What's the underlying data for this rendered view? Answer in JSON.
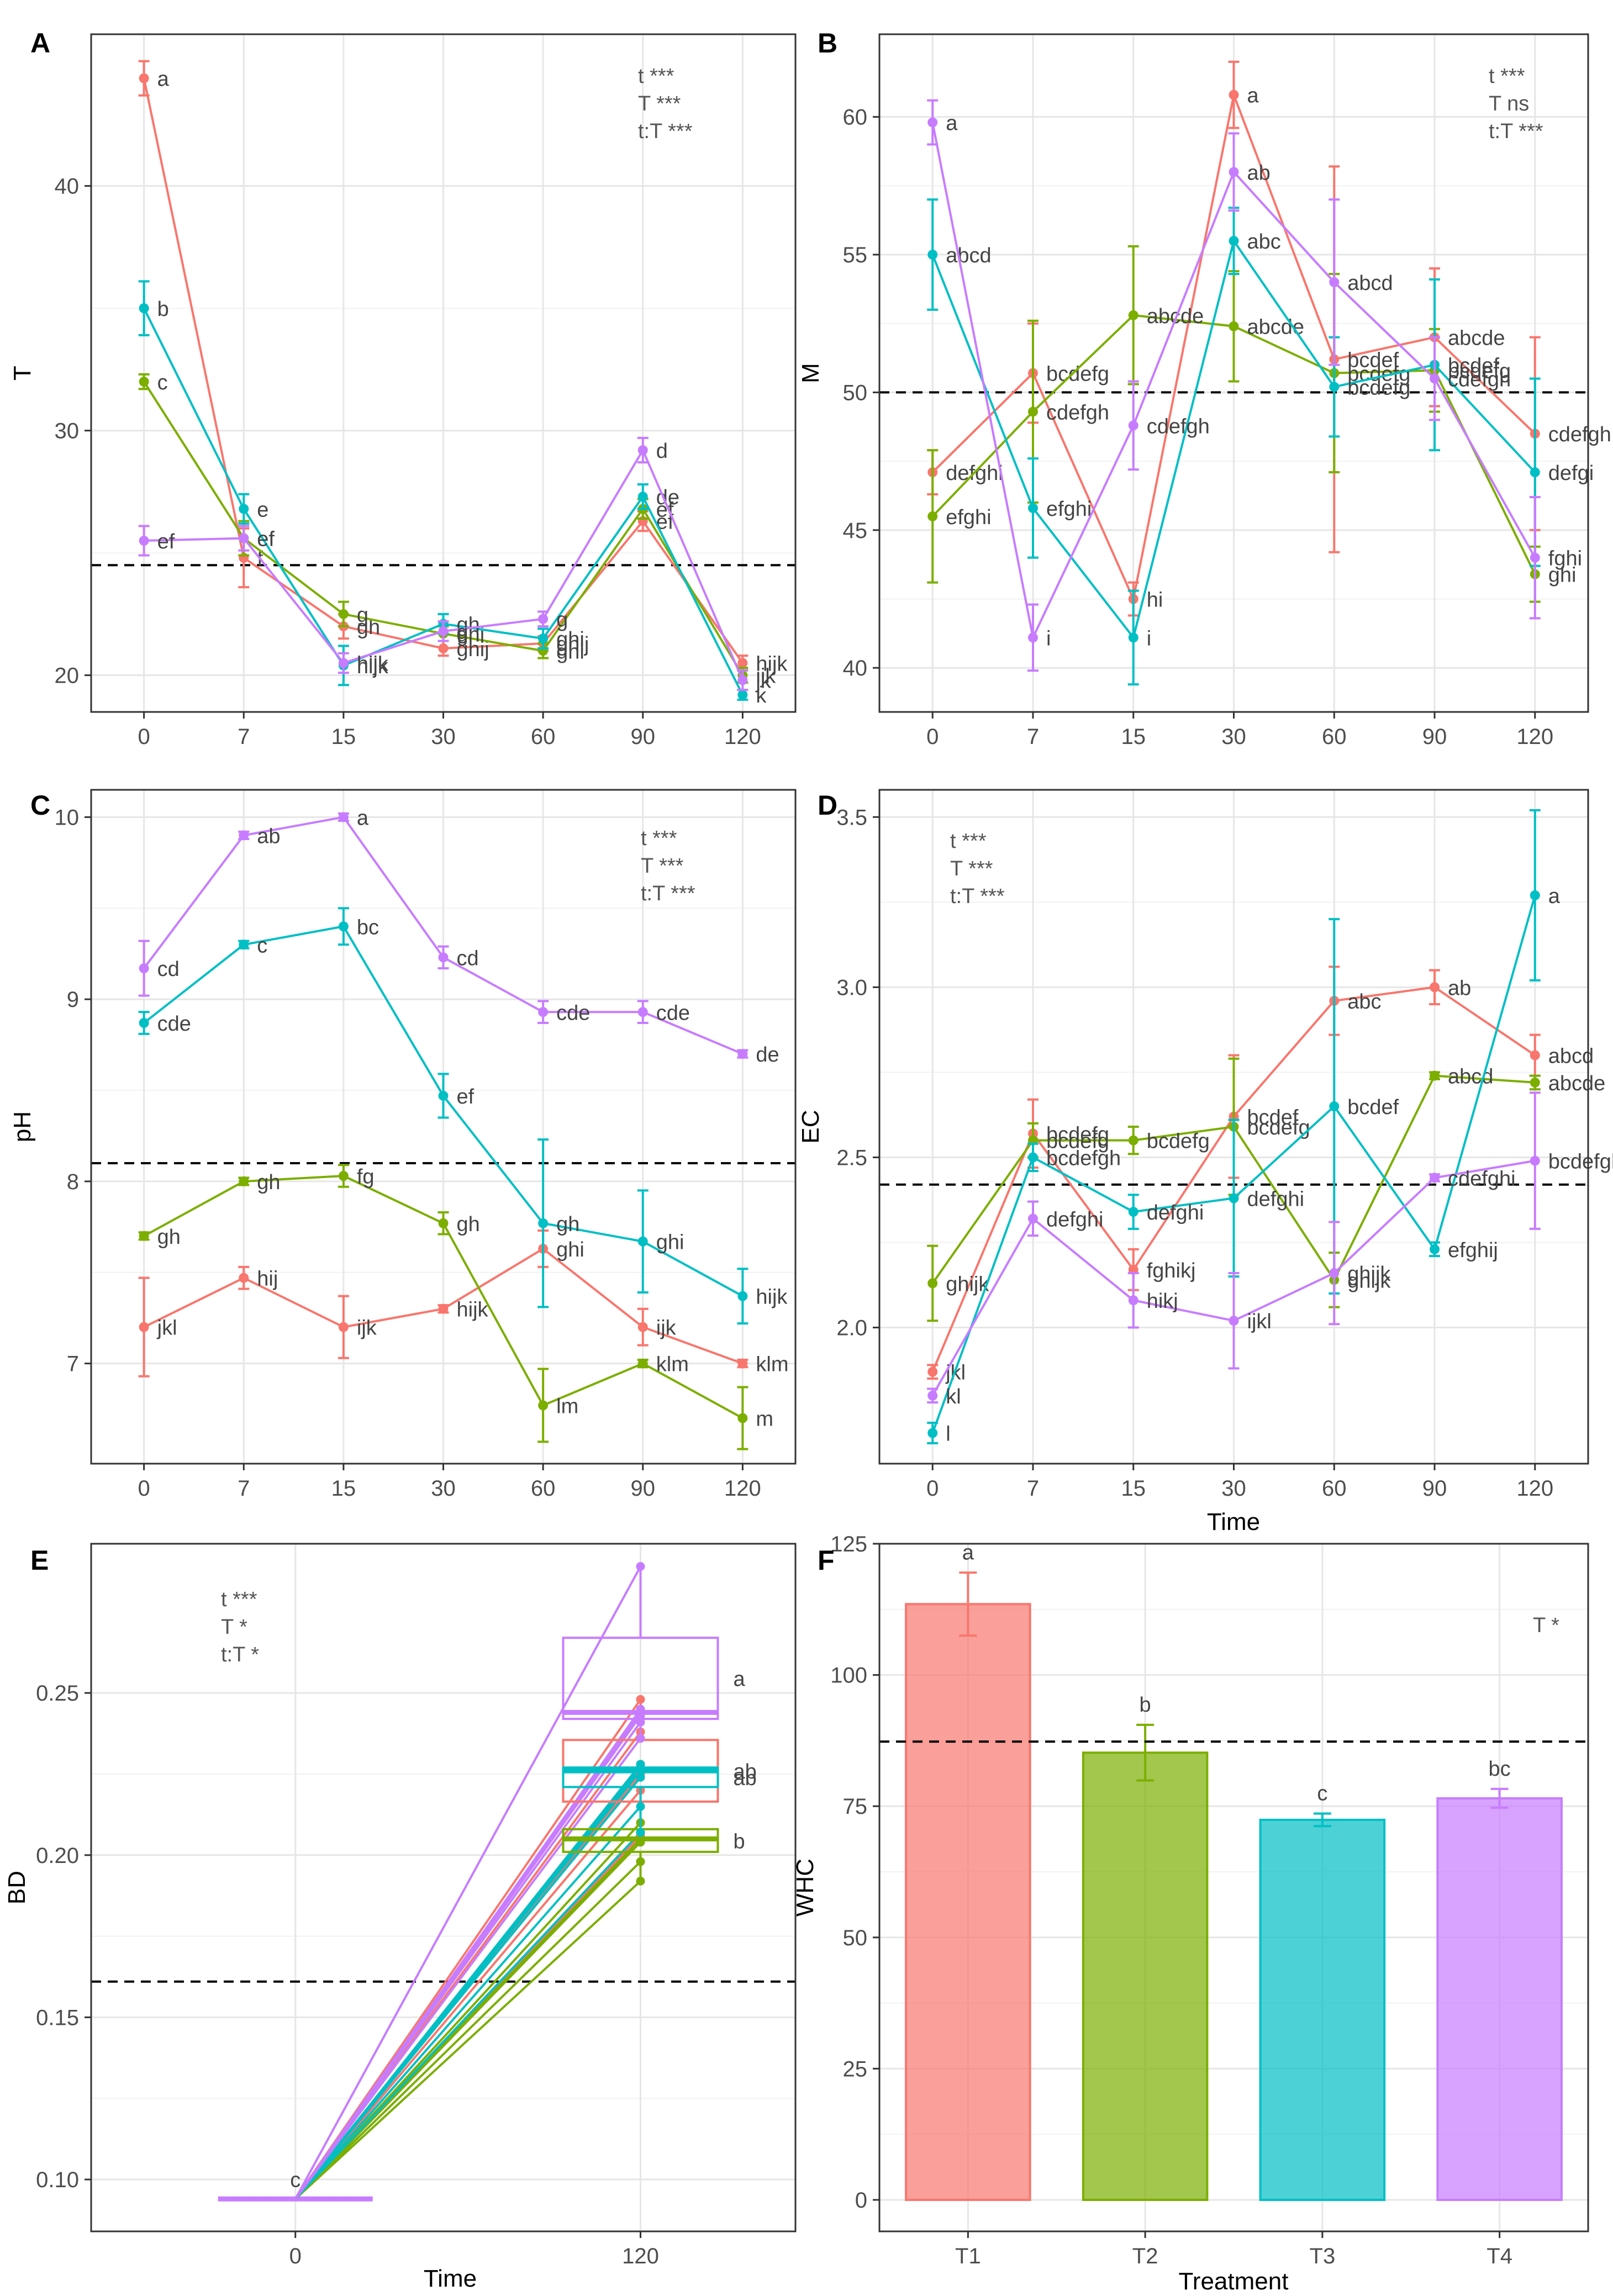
{
  "colors": {
    "T1": "#F8766D",
    "T2": "#7CAE00",
    "T3": "#00BFC4",
    "T4": "#C77CFF"
  },
  "xlabel_time": "Time",
  "chart_data": [
    {
      "id": "A",
      "panel_label": "A",
      "type": "line",
      "ylabel": "T",
      "xlabel": "",
      "categories": [
        "0",
        "7",
        "15",
        "30",
        "60",
        "90",
        "120"
      ],
      "ylim": [
        18.5,
        46.2
      ],
      "yticks": [
        20,
        30,
        40
      ],
      "ref_line": 24.5,
      "stats": [
        "t ***",
        "T ***",
        "t:T ***"
      ],
      "series": [
        {
          "name": "T1",
          "values": [
            44.4,
            24.8,
            22.0,
            21.1,
            21.3,
            26.3,
            20.5
          ],
          "errors": [
            0.7,
            1.2,
            0.5,
            0.3,
            0.3,
            0.4,
            0.3
          ],
          "letters": [
            "a",
            "f",
            "gh",
            "ghij",
            "ghij",
            "ef",
            "hijk"
          ]
        },
        {
          "name": "T2",
          "values": [
            32.0,
            25.6,
            22.5,
            21.7,
            21.0,
            26.8,
            20.0
          ],
          "errors": [
            0.3,
            0.7,
            0.5,
            0.3,
            0.3,
            0.4,
            0.3
          ],
          "letters": [
            "c",
            "ef",
            "g",
            "ghi",
            "ghi",
            "ef",
            "ijk"
          ]
        },
        {
          "name": "T3",
          "values": [
            35.0,
            26.8,
            20.4,
            22.1,
            21.5,
            27.3,
            19.2
          ],
          "errors": [
            1.1,
            0.6,
            0.8,
            0.4,
            0.4,
            0.5,
            0.2
          ],
          "letters": [
            "b",
            "e",
            "hijk",
            "gh",
            "ghi",
            "de",
            "k"
          ]
        },
        {
          "name": "T4",
          "values": [
            25.5,
            25.6,
            20.5,
            21.8,
            22.3,
            29.2,
            19.8
          ],
          "errors": [
            0.6,
            0.5,
            0.4,
            0.4,
            0.3,
            0.5,
            0.4
          ],
          "letters": [
            "ef",
            "ef",
            "hijk",
            "g",
            "g",
            "d",
            "jk"
          ]
        }
      ]
    },
    {
      "id": "B",
      "panel_label": "B",
      "type": "line",
      "ylabel": "M",
      "xlabel": "",
      "categories": [
        "0",
        "7",
        "15",
        "30",
        "60",
        "90",
        "120"
      ],
      "ylim": [
        38.4,
        63.0
      ],
      "yticks": [
        40,
        45,
        50,
        55,
        60
      ],
      "ref_line": 50.0,
      "stats": [
        "t ***",
        "T ns",
        "t:T ***"
      ],
      "series": [
        {
          "name": "T1",
          "values": [
            47.1,
            50.7,
            42.5,
            60.8,
            51.2,
            52.0,
            48.5
          ],
          "errors": [
            0.8,
            1.8,
            0.6,
            1.2,
            7.0,
            2.5,
            3.5
          ],
          "letters": [
            "defghi",
            "bcdefg",
            "hi",
            "a",
            "bcdef",
            "abcde",
            "cdefgh"
          ]
        },
        {
          "name": "T2",
          "values": [
            45.5,
            49.3,
            52.8,
            52.4,
            50.7,
            50.8,
            43.4
          ],
          "errors": [
            2.4,
            3.3,
            2.5,
            2.0,
            3.6,
            1.5,
            1.0
          ],
          "letters": [
            "efghi",
            "cdefgh",
            "abcde",
            "abcde",
            "bcdefg",
            "bcdefg",
            "ghi"
          ]
        },
        {
          "name": "T3",
          "values": [
            55.0,
            45.8,
            41.1,
            55.5,
            50.2,
            51.0,
            47.1
          ],
          "errors": [
            2.0,
            1.8,
            1.7,
            1.2,
            1.8,
            3.1,
            3.4
          ],
          "letters": [
            "abcd",
            "efghi",
            "i",
            "abc",
            "bcdefg",
            "bcdef",
            "defgi"
          ]
        },
        {
          "name": "T4",
          "values": [
            59.8,
            41.1,
            48.8,
            58.0,
            54.0,
            50.5,
            44.0
          ],
          "errors": [
            0.8,
            1.2,
            1.6,
            1.4,
            3.0,
            1.5,
            2.2
          ],
          "letters": [
            "a",
            "i",
            "cdefgh",
            "ab",
            "abcd",
            "cdefgh",
            "fghi"
          ]
        }
      ]
    },
    {
      "id": "C",
      "panel_label": "C",
      "type": "line",
      "ylabel": "pH",
      "xlabel": "",
      "categories": [
        "0",
        "7",
        "15",
        "30",
        "60",
        "90",
        "120"
      ],
      "ylim": [
        6.45,
        10.15
      ],
      "yticks": [
        7,
        8,
        9,
        10
      ],
      "ref_line": 8.1,
      "stats": [
        "t ***",
        "T ***",
        "t:T ***"
      ],
      "series": [
        {
          "name": "T1",
          "values": [
            7.2,
            7.47,
            7.2,
            7.3,
            7.63,
            7.2,
            7.0
          ],
          "errors": [
            0.27,
            0.06,
            0.17,
            0.02,
            0.1,
            0.1,
            0.02
          ],
          "letters": [
            "jkl",
            "hij",
            "ijk",
            "hijk",
            "ghi",
            "ijk",
            "klm"
          ]
        },
        {
          "name": "T2",
          "values": [
            7.7,
            8.0,
            8.03,
            7.77,
            6.77,
            7.0,
            6.7
          ],
          "errors": [
            0.02,
            0.02,
            0.06,
            0.06,
            0.2,
            0.02,
            0.17
          ],
          "letters": [
            "gh",
            "gh",
            "fg",
            "gh",
            "lm",
            "klm",
            "m"
          ]
        },
        {
          "name": "T3",
          "values": [
            8.87,
            9.3,
            9.4,
            8.47,
            7.77,
            7.67,
            7.37
          ],
          "errors": [
            0.06,
            0.02,
            0.1,
            0.12,
            0.46,
            0.28,
            0.15
          ],
          "letters": [
            "cde",
            "c",
            "bc",
            "ef",
            "gh",
            "ghi",
            "hijk"
          ]
        },
        {
          "name": "T4",
          "values": [
            9.17,
            9.9,
            10.0,
            9.23,
            8.93,
            8.93,
            8.7
          ],
          "errors": [
            0.15,
            0.02,
            0.02,
            0.06,
            0.06,
            0.06,
            0.02
          ],
          "letters": [
            "cd",
            "ab",
            "a",
            "cd",
            "cde",
            "cde",
            "de"
          ]
        }
      ]
    },
    {
      "id": "D",
      "panel_label": "D",
      "type": "line",
      "ylabel": "EC",
      "xlabel": "Time",
      "categories": [
        "0",
        "7",
        "15",
        "30",
        "60",
        "90",
        "120"
      ],
      "ylim": [
        1.6,
        3.58
      ],
      "yticks": [
        2.0,
        2.5,
        3.0,
        3.5
      ],
      "ref_line": 2.42,
      "stats": [
        "t ***",
        "T ***",
        "t:T ***"
      ],
      "series": [
        {
          "name": "T1",
          "values": [
            1.87,
            2.57,
            2.17,
            2.62,
            2.96,
            3.0,
            2.8
          ],
          "errors": [
            0.02,
            0.1,
            0.06,
            0.18,
            0.1,
            0.05,
            0.06
          ],
          "letters": [
            "jkl",
            "bcdefg",
            "fghikj",
            "bcdef",
            "abc",
            "ab",
            "abcd"
          ]
        },
        {
          "name": "T2",
          "values": [
            2.13,
            2.55,
            2.55,
            2.59,
            2.14,
            2.74,
            2.72
          ],
          "errors": [
            0.11,
            0.05,
            0.04,
            0.2,
            0.08,
            0.01,
            0.02
          ],
          "letters": [
            "ghijk",
            "bcdefg",
            "bcdefg",
            "bcdefg",
            "ghijk",
            "abcd",
            "abcde"
          ]
        },
        {
          "name": "T3",
          "values": [
            1.69,
            2.5,
            2.34,
            2.38,
            2.65,
            2.23,
            3.27
          ],
          "errors": [
            0.03,
            0.04,
            0.05,
            0.23,
            0.55,
            0.02,
            0.25
          ],
          "letters": [
            "l",
            "bcdefgh",
            "defghi",
            "defghi",
            "bcdef",
            "efghij",
            "a"
          ]
        },
        {
          "name": "T4",
          "values": [
            1.8,
            2.32,
            2.08,
            2.02,
            2.16,
            2.44,
            2.49
          ],
          "errors": [
            0.02,
            0.05,
            0.08,
            0.14,
            0.15,
            0.01,
            0.2
          ],
          "letters": [
            "kl",
            "defghi",
            "hikj",
            "ijkl",
            "ghijk",
            "cdefghi",
            "bcdefgh"
          ]
        }
      ]
    },
    {
      "id": "E",
      "panel_label": "E",
      "type": "box",
      "ylabel": "BD",
      "xlabel": "Time",
      "categories": [
        "0",
        "120"
      ],
      "ylim": [
        0.084,
        0.296
      ],
      "yticks": [
        0.1,
        0.15,
        0.2,
        0.25
      ],
      "ref_line": 0.161,
      "stats": [
        "t ***",
        "T *",
        "t:T *"
      ],
      "start_value": 0.094,
      "start_letter": "c",
      "groups": [
        {
          "name": "T1",
          "q1": 0.2165,
          "median": 0.2265,
          "q3": 0.2355,
          "min": 0.206,
          "max": 0.248,
          "letter": "ab",
          "points": [
            0.248,
            0.238,
            0.228,
            0.225,
            0.22,
            0.206
          ]
        },
        {
          "name": "T2",
          "q1": 0.201,
          "median": 0.205,
          "q3": 0.208,
          "min": 0.192,
          "max": 0.21,
          "letter": "b",
          "points": [
            0.21,
            0.207,
            0.205,
            0.204,
            0.198,
            0.192
          ]
        },
        {
          "name": "T3",
          "q1": 0.221,
          "median": 0.226,
          "q3": 0.227,
          "min": 0.207,
          "max": 0.228,
          "letter": "ab",
          "points": [
            0.228,
            0.227,
            0.226,
            0.224,
            0.215,
            0.207
          ]
        },
        {
          "name": "T4",
          "q1": 0.242,
          "median": 0.244,
          "q3": 0.267,
          "min": 0.236,
          "max": 0.289,
          "letter": "a",
          "points": [
            0.289,
            0.245,
            0.244,
            0.243,
            0.241,
            0.236
          ]
        }
      ]
    },
    {
      "id": "F",
      "panel_label": "F",
      "type": "bar",
      "ylabel": "WHC",
      "xlabel": "Treatment",
      "categories": [
        "T1",
        "T2",
        "T3",
        "T4"
      ],
      "values": [
        113.5,
        85.2,
        72.4,
        76.5
      ],
      "errors": [
        6.0,
        5.3,
        1.2,
        1.8
      ],
      "letters": [
        "a",
        "b",
        "c",
        "bc"
      ],
      "ylim": [
        -6,
        125
      ],
      "yticks": [
        0,
        25,
        50,
        75,
        100,
        125
      ],
      "ref_line": 87.3,
      "stats": [
        "T *"
      ]
    }
  ]
}
